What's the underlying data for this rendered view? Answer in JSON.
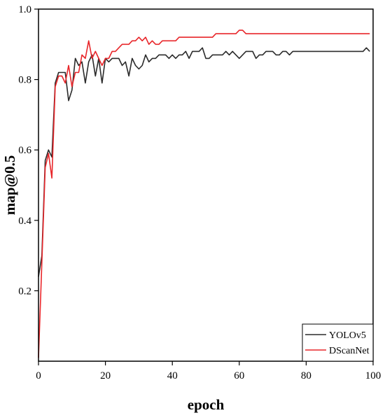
{
  "chart_data": {
    "type": "line",
    "xlabel": "epoch",
    "ylabel": "map@0.5",
    "xlim": [
      0,
      100
    ],
    "ylim": [
      0,
      1.0
    ],
    "xticks": [
      0,
      20,
      40,
      60,
      80,
      100
    ],
    "yticks": [
      0.2,
      0.4,
      0.6,
      0.8,
      1.0
    ],
    "xtick_labels": [
      "0",
      "20",
      "40",
      "60",
      "80",
      "100"
    ],
    "ytick_labels": [
      "0.2",
      "0.4",
      "0.6",
      "0.8",
      "1.0"
    ],
    "grid": false,
    "legend_position": "bottom-right",
    "x": [
      0,
      1,
      2,
      3,
      4,
      5,
      6,
      7,
      8,
      9,
      10,
      11,
      12,
      13,
      14,
      15,
      16,
      17,
      18,
      19,
      20,
      21,
      22,
      23,
      24,
      25,
      26,
      27,
      28,
      29,
      30,
      31,
      32,
      33,
      34,
      35,
      36,
      37,
      38,
      39,
      40,
      41,
      42,
      43,
      44,
      45,
      46,
      47,
      48,
      49,
      50,
      51,
      52,
      53,
      54,
      55,
      56,
      57,
      58,
      59,
      60,
      61,
      62,
      63,
      64,
      65,
      66,
      67,
      68,
      69,
      70,
      71,
      72,
      73,
      74,
      75,
      76,
      77,
      78,
      79,
      80,
      81,
      82,
      83,
      84,
      85,
      86,
      87,
      88,
      89,
      90,
      91,
      92,
      93,
      94,
      95,
      96,
      97,
      98,
      99
    ],
    "series": [
      {
        "name": "YOLOv5",
        "color": "#2b2b2b",
        "values": [
          0.24,
          0.3,
          0.57,
          0.6,
          0.58,
          0.79,
          0.82,
          0.82,
          0.82,
          0.74,
          0.77,
          0.86,
          0.84,
          0.85,
          0.79,
          0.85,
          0.87,
          0.81,
          0.86,
          0.79,
          0.86,
          0.85,
          0.86,
          0.86,
          0.86,
          0.84,
          0.85,
          0.81,
          0.86,
          0.84,
          0.83,
          0.84,
          0.87,
          0.85,
          0.86,
          0.86,
          0.87,
          0.87,
          0.87,
          0.86,
          0.87,
          0.86,
          0.87,
          0.87,
          0.88,
          0.86,
          0.88,
          0.88,
          0.88,
          0.89,
          0.86,
          0.86,
          0.87,
          0.87,
          0.87,
          0.87,
          0.88,
          0.87,
          0.88,
          0.87,
          0.86,
          0.87,
          0.88,
          0.88,
          0.88,
          0.86,
          0.87,
          0.87,
          0.88,
          0.88,
          0.88,
          0.87,
          0.87,
          0.88,
          0.88,
          0.87,
          0.88,
          0.88,
          0.88,
          0.88,
          0.88,
          0.88,
          0.88,
          0.88,
          0.88,
          0.88,
          0.88,
          0.88,
          0.88,
          0.88,
          0.88,
          0.88,
          0.88,
          0.88,
          0.88,
          0.88,
          0.88,
          0.88,
          0.89,
          0.88
        ]
      },
      {
        "name": "DScanNet",
        "color": "#e8262a",
        "values": [
          0.01,
          0.28,
          0.55,
          0.59,
          0.52,
          0.78,
          0.81,
          0.81,
          0.79,
          0.84,
          0.78,
          0.82,
          0.82,
          0.87,
          0.86,
          0.91,
          0.86,
          0.88,
          0.86,
          0.84,
          0.86,
          0.86,
          0.88,
          0.88,
          0.89,
          0.9,
          0.9,
          0.9,
          0.91,
          0.91,
          0.92,
          0.91,
          0.92,
          0.9,
          0.91,
          0.9,
          0.9,
          0.91,
          0.91,
          0.91,
          0.91,
          0.91,
          0.92,
          0.92,
          0.92,
          0.92,
          0.92,
          0.92,
          0.92,
          0.92,
          0.92,
          0.92,
          0.92,
          0.93,
          0.93,
          0.93,
          0.93,
          0.93,
          0.93,
          0.93,
          0.94,
          0.94,
          0.93,
          0.93,
          0.93,
          0.93,
          0.93,
          0.93,
          0.93,
          0.93,
          0.93,
          0.93,
          0.93,
          0.93,
          0.93,
          0.93,
          0.93,
          0.93,
          0.93,
          0.93,
          0.93,
          0.93,
          0.93,
          0.93,
          0.93,
          0.93,
          0.93,
          0.93,
          0.93,
          0.93,
          0.93,
          0.93,
          0.93,
          0.93,
          0.93,
          0.93,
          0.93,
          0.93,
          0.93,
          0.93
        ]
      }
    ]
  }
}
